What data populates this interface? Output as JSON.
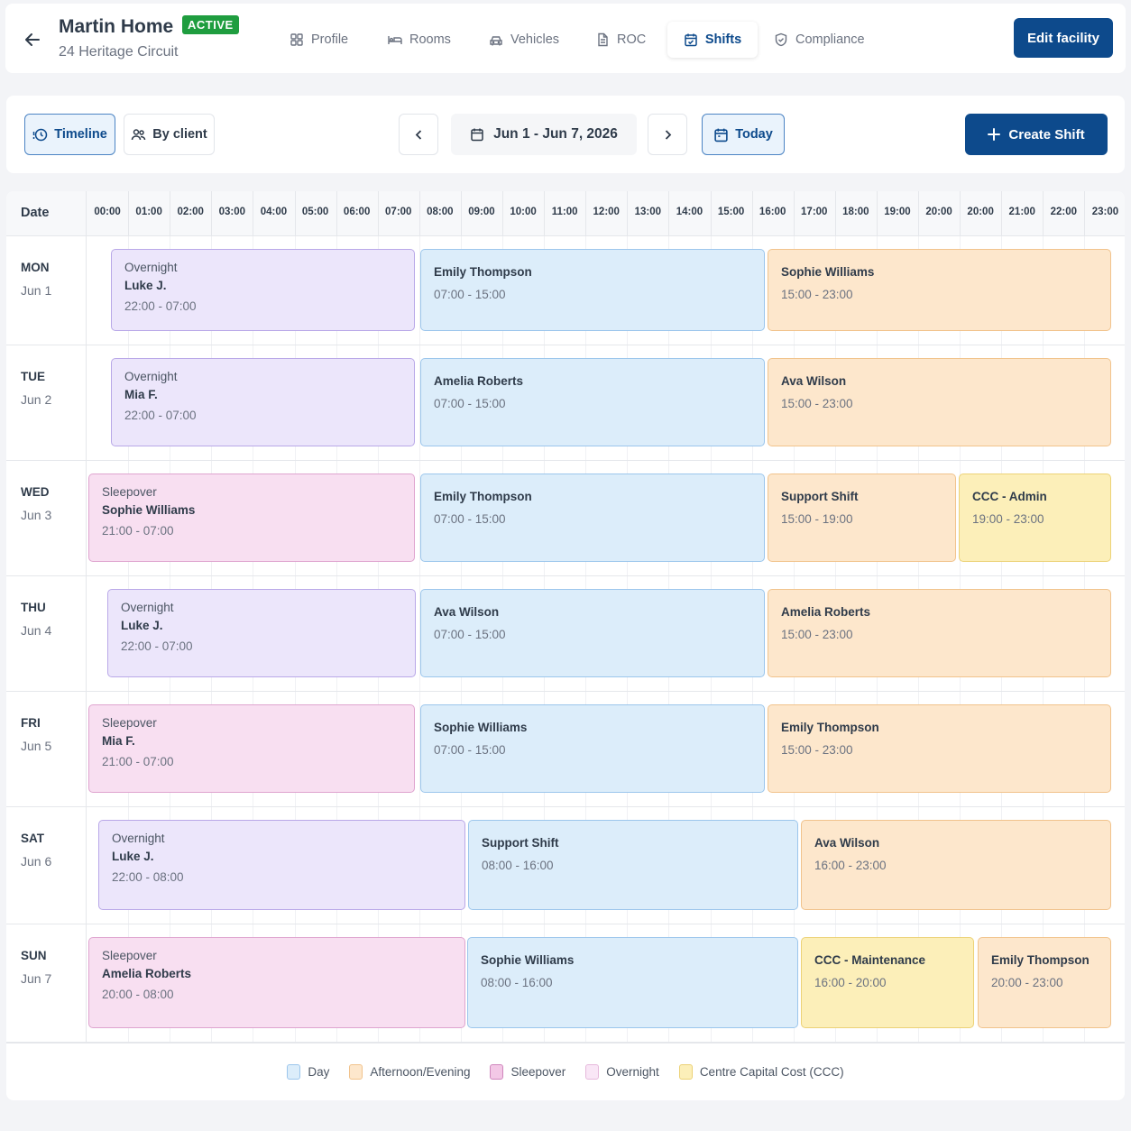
{
  "header": {
    "title": "Martin Home",
    "status": "ACTIVE",
    "address": "24 Heritage Circuit",
    "edit_label": "Edit facility",
    "tabs": [
      {
        "label": "Profile",
        "icon": "grid-icon"
      },
      {
        "label": "Rooms",
        "icon": "bed-icon"
      },
      {
        "label": "Vehicles",
        "icon": "car-icon"
      },
      {
        "label": "ROC",
        "icon": "document-icon"
      },
      {
        "label": "Shifts",
        "icon": "calendar-check-icon",
        "active": true
      },
      {
        "label": "Compliance",
        "icon": "shield-check-icon"
      }
    ]
  },
  "toolbar": {
    "timeline_label": "Timeline",
    "byclient_label": "By client",
    "date_range": "Jun 1 - Jun 7, 2026",
    "today_label": "Today",
    "create_label": "Create Shift"
  },
  "timeline": {
    "date_header": "Date",
    "hours": [
      "00:00",
      "01:00",
      "02:00",
      "03:00",
      "04:00",
      "05:00",
      "06:00",
      "07:00",
      "08:00",
      "09:00",
      "10:00",
      "11:00",
      "12:00",
      "13:00",
      "14:00",
      "15:00",
      "16:00",
      "17:00",
      "18:00",
      "19:00",
      "20:00",
      "20:00",
      "21:00",
      "22:00",
      "23:00"
    ],
    "days": [
      {
        "name": "MON",
        "date": "Jun 1",
        "shifts": [
          {
            "type": "overnight",
            "label": "Overnight",
            "person": "Luke J.",
            "time": "22:00 - 07:00"
          },
          {
            "type": "day",
            "person": "Emily Thompson",
            "time": "07:00 - 15:00"
          },
          {
            "type": "evening",
            "person": "Sophie Williams",
            "time": "15:00 - 23:00"
          }
        ]
      },
      {
        "name": "TUE",
        "date": "Jun 2",
        "shifts": [
          {
            "type": "overnight",
            "label": "Overnight",
            "person": "Mia F.",
            "time": "22:00 - 07:00"
          },
          {
            "type": "day",
            "person": "Amelia Roberts",
            "time": "07:00 - 15:00"
          },
          {
            "type": "evening",
            "person": "Ava Wilson",
            "time": "15:00 - 23:00"
          }
        ]
      },
      {
        "name": "WED",
        "date": "Jun 3",
        "shifts": [
          {
            "type": "sleepover",
            "label": "Sleepover",
            "person": "Sophie Williams",
            "time": "21:00 - 07:00"
          },
          {
            "type": "day",
            "person": "Emily Thompson",
            "time": "07:00 - 15:00"
          },
          {
            "type": "evening",
            "person": "Support Shift",
            "time": "15:00 - 19:00"
          },
          {
            "type": "ccc",
            "person": "CCC - Admin",
            "time": "19:00 - 23:00"
          }
        ]
      },
      {
        "name": "THU",
        "date": "Jun 4",
        "shifts": [
          {
            "type": "overnight",
            "label": "Overnight",
            "person": "Luke J.",
            "time": "22:00 - 07:00"
          },
          {
            "type": "day",
            "person": "Ava Wilson",
            "time": "07:00 - 15:00"
          },
          {
            "type": "evening",
            "person": "Amelia Roberts",
            "time": "15:00 - 23:00"
          }
        ]
      },
      {
        "name": "FRI",
        "date": "Jun 5",
        "shifts": [
          {
            "type": "sleepover",
            "label": "Sleepover",
            "person": "Mia F.",
            "time": "21:00 - 07:00"
          },
          {
            "type": "day",
            "person": "Sophie Williams",
            "time": "07:00 - 15:00"
          },
          {
            "type": "evening",
            "person": "Emily Thompson",
            "time": "15:00 - 23:00"
          }
        ]
      },
      {
        "name": "SAT",
        "date": "Jun 6",
        "shifts": [
          {
            "type": "overnight",
            "label": "Overnight",
            "person": "Luke J.",
            "time": "22:00 - 08:00"
          },
          {
            "type": "day",
            "person": "Support Shift",
            "time": "08:00 - 16:00"
          },
          {
            "type": "evening",
            "person": "Ava Wilson",
            "time": "16:00 - 23:00"
          }
        ]
      },
      {
        "name": "SUN",
        "date": "Jun 7",
        "shifts": [
          {
            "type": "sleepover",
            "label": "Sleepover",
            "person": "Amelia Roberts",
            "time": "20:00 - 08:00"
          },
          {
            "type": "day",
            "person": "Sophie Williams",
            "time": "08:00 - 16:00"
          },
          {
            "type": "ccc",
            "person": "CCC - Maintenance",
            "time": "16:00 - 20:00"
          },
          {
            "type": "evening",
            "person": "Emily Thompson",
            "time": "20:00 - 23:00"
          }
        ]
      }
    ]
  },
  "legend": [
    {
      "label": "Day",
      "type": "day"
    },
    {
      "label": "Afternoon/Evening",
      "type": "evening"
    },
    {
      "label": "Sleepover",
      "type": "sleepover"
    },
    {
      "label": "Overnight",
      "type": "overnight"
    },
    {
      "label": "Centre Capital Cost (CCC)",
      "type": "ccc"
    }
  ],
  "colors": {
    "primary": "#0d4a8c",
    "active_badge": "#1f9d3f",
    "day": "#dcedfa",
    "evening": "#fde7cc",
    "sleepover": "#f8dff1",
    "overnight": "#ece6fb",
    "ccc": "#fcefb9"
  }
}
